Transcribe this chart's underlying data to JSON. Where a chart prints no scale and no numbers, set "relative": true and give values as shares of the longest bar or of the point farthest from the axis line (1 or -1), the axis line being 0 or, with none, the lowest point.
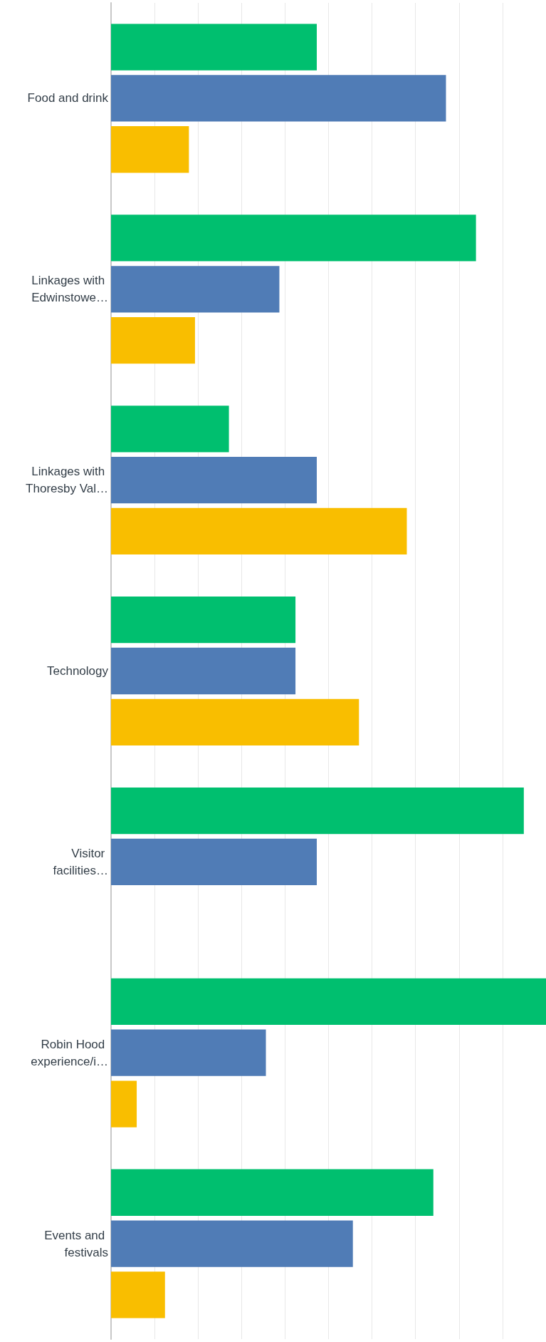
{
  "chart_data": {
    "type": "bar",
    "orientation": "horizontal",
    "relative": true,
    "grid": "x",
    "categories": [
      "Food and drink",
      "Linkages with Edwinstowe…",
      "Linkages with Thoresby Val…",
      "Technology",
      "Visitor facilities…",
      "Robin Hood experience/i…",
      "Events and festivals"
    ],
    "series": [
      {
        "color": "#00bf6f",
        "values": [
          0.473,
          0.839,
          0.271,
          0.424,
          0.949,
          1,
          0.741
        ]
      },
      {
        "color": "#507cb6",
        "values": [
          0.77,
          0.387,
          0.473,
          0.424,
          0.473,
          0.356,
          0.556
        ]
      },
      {
        "color": "#f9be00",
        "values": [
          0.179,
          0.193,
          0.68,
          0.57,
          0,
          0.059,
          0.124
        ]
      }
    ]
  }
}
